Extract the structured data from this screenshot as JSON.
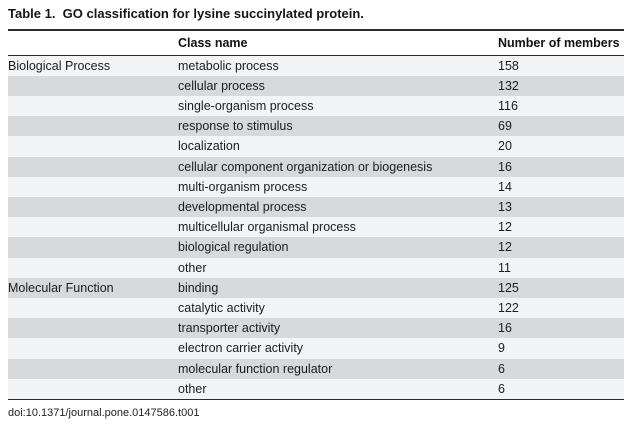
{
  "table": {
    "title": "Table 1.  GO classification for lysine succinylated protein.",
    "columns": {
      "group": "",
      "class_name": "Class name",
      "members": "Number of members"
    },
    "rows": [
      {
        "group": "Biological Process",
        "class_name": "metabolic process",
        "members": "158"
      },
      {
        "group": "",
        "class_name": "cellular process",
        "members": "132"
      },
      {
        "group": "",
        "class_name": "single-organism process",
        "members": "116"
      },
      {
        "group": "",
        "class_name": "response to stimulus",
        "members": "69"
      },
      {
        "group": "",
        "class_name": "localization",
        "members": "20"
      },
      {
        "group": "",
        "class_name": "cellular component organization or biogenesis",
        "members": "16"
      },
      {
        "group": "",
        "class_name": "multi-organism process",
        "members": "14"
      },
      {
        "group": "",
        "class_name": "developmental process",
        "members": "13"
      },
      {
        "group": "",
        "class_name": "multicellular organismal process",
        "members": "12"
      },
      {
        "group": "",
        "class_name": "biological regulation",
        "members": "12"
      },
      {
        "group": "",
        "class_name": "other",
        "members": "11"
      },
      {
        "group": "Molecular Function",
        "class_name": "binding",
        "members": "125"
      },
      {
        "group": "",
        "class_name": "catalytic activity",
        "members": "122"
      },
      {
        "group": "",
        "class_name": "transporter activity",
        "members": "16"
      },
      {
        "group": "",
        "class_name": "electron carrier activity",
        "members": "9"
      },
      {
        "group": "",
        "class_name": "molecular function regulator",
        "members": "6"
      },
      {
        "group": "",
        "class_name": "other",
        "members": "6"
      }
    ],
    "footer": "doi:10.1371/journal.pone.0147586.t001"
  },
  "colors": {
    "stripe_light": "#f3f4f5",
    "stripe_dark": "#d8d9da",
    "rule": "#2b2b2b",
    "text": "#1c1c1c"
  }
}
